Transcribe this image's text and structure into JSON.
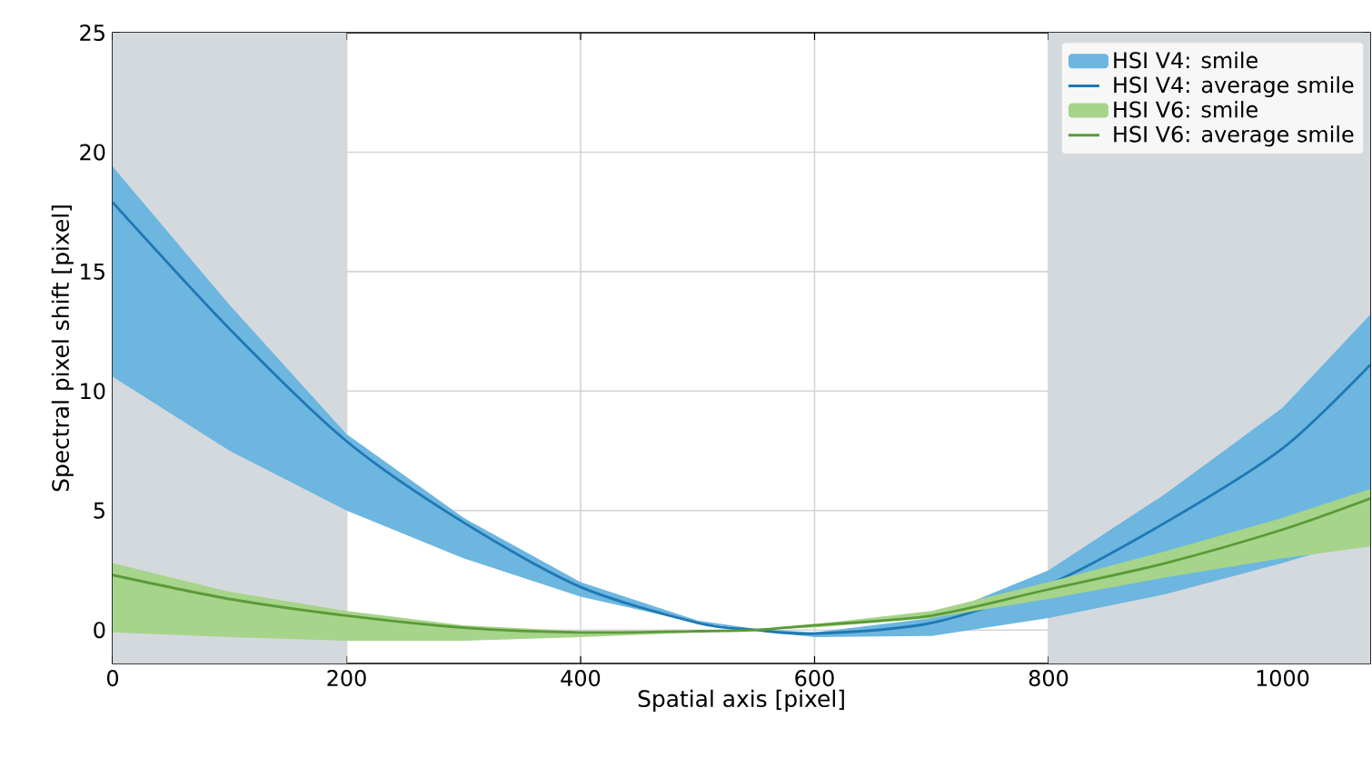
{
  "chart_data": {
    "type": "line",
    "xlabel": "Spatial axis [pixel]",
    "ylabel": "Spectral pixel shift [pixel]",
    "x": [
      0,
      100,
      200,
      300,
      400,
      500,
      550,
      600,
      700,
      800,
      900,
      1000,
      1075
    ],
    "series": [
      {
        "name": "HSI V4: smile",
        "color": "#6cb6e0",
        "values": [
          null,
          null,
          null,
          null,
          null,
          null,
          null,
          null,
          null,
          null,
          null,
          null,
          null
        ],
        "lower": [
          10.6,
          7.5,
          5.0,
          3.0,
          1.4,
          0.3,
          0,
          -0.3,
          -0.25,
          0.5,
          1.5,
          2.8,
          3.9
        ],
        "upper": [
          19.4,
          13.6,
          8.2,
          4.7,
          2.0,
          0.4,
          0.05,
          -0.1,
          0.5,
          2.5,
          5.7,
          9.3,
          13.2
        ]
      },
      {
        "name": "HSI V4: average smile",
        "type": "line",
        "color": "#1f78b4",
        "values": [
          17.9,
          12.6,
          7.9,
          4.5,
          1.8,
          0.3,
          0,
          -0.15,
          0.3,
          1.9,
          4.5,
          7.6,
          11.1
        ]
      },
      {
        "name": "HSI V6: smile",
        "color": "#a6d48a",
        "values": [
          null,
          null,
          null,
          null,
          null,
          null,
          null,
          null,
          null,
          null,
          null,
          null,
          null
        ],
        "lower": [
          -0.1,
          -0.3,
          -0.45,
          -0.45,
          -0.3,
          -0.1,
          0,
          0.1,
          0.5,
          1.3,
          2.2,
          3.0,
          3.5
        ],
        "upper": [
          2.8,
          1.6,
          0.8,
          0.2,
          -0.05,
          -0.05,
          0,
          0.25,
          0.8,
          2.0,
          3.3,
          4.7,
          5.9
        ]
      },
      {
        "name": "HSI V6: average smile",
        "type": "line",
        "color": "#5a9a38",
        "values": [
          2.3,
          1.3,
          0.6,
          0.1,
          -0.1,
          -0.05,
          0,
          0.2,
          0.6,
          1.7,
          2.8,
          4.2,
          5.5
        ]
      }
    ],
    "bands": [
      {
        "axis": "x",
        "from": 0,
        "to": 200,
        "color": "#d4d9de"
      },
      {
        "axis": "x",
        "from": 800,
        "to": 1075,
        "color": "#d4d9de"
      }
    ],
    "xlim": [
      0,
      1075
    ],
    "ylim": [
      -1.4,
      25
    ],
    "xticks": [
      0,
      200,
      400,
      600,
      800,
      1000
    ],
    "yticks": [
      0,
      5,
      10,
      15,
      20,
      25
    ],
    "grid": true,
    "legend": "top right",
    "line_style": "solid",
    "marker": "none"
  }
}
